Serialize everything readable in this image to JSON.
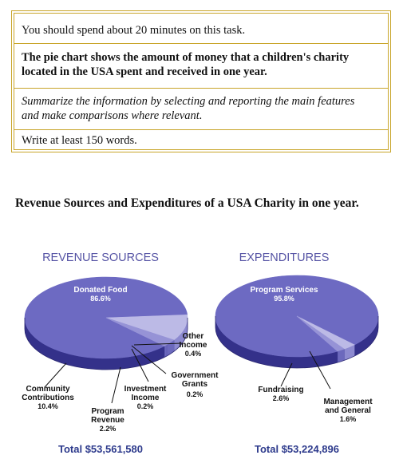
{
  "task": {
    "time_line": "You should spend about 20 minutes on this task.",
    "prompt_line1": "The pie chart shows the amount of money that a children's charity",
    "prompt_line2": "located in the USA spent and received in one year.",
    "instruction_line1": "Summarize the information by selecting and reporting the main features",
    "instruction_line2": "and make comparisons where relevant.",
    "words_line": "Write at least 150 words."
  },
  "main_title": "Revenue Sources and Expenditures of a USA Charity in one year.",
  "colors": {
    "header": "#5553a4",
    "top": "#6d6ac2",
    "side": "#34318a",
    "light": "#bcbae6",
    "mid": "#9693d6",
    "total": "#2d3a8c"
  },
  "chart_data": [
    {
      "type": "pie",
      "title": "REVENUE SOURCES",
      "total_label": "Total $53,561,580",
      "slices": [
        {
          "name_lines": [
            "Donated Food"
          ],
          "value": 86.6,
          "value_label": "86.6%"
        },
        {
          "name_lines": [
            "Community",
            "Contributions"
          ],
          "value": 10.4,
          "value_label": "10.4%"
        },
        {
          "name_lines": [
            "Program",
            "Revenue"
          ],
          "value": 2.2,
          "value_label": "2.2%"
        },
        {
          "name_lines": [
            "Investment",
            "Income"
          ],
          "value": 0.2,
          "value_label": "0.2%"
        },
        {
          "name_lines": [
            "Government",
            "Grants"
          ],
          "value": 0.2,
          "value_label": "0.2%"
        },
        {
          "name_lines": [
            "Other",
            "Income"
          ],
          "value": 0.4,
          "value_label": "0.4%"
        }
      ]
    },
    {
      "type": "pie",
      "title": "EXPENDITURES",
      "total_label": "Total $53,224,896",
      "slices": [
        {
          "name_lines": [
            "Program Services"
          ],
          "value": 95.8,
          "value_label": "95.8%"
        },
        {
          "name_lines": [
            "Fundraising"
          ],
          "value": 2.6,
          "value_label": "2.6%"
        },
        {
          "name_lines": [
            "Management",
            "and General"
          ],
          "value": 1.6,
          "value_label": "1.6%"
        }
      ]
    }
  ]
}
